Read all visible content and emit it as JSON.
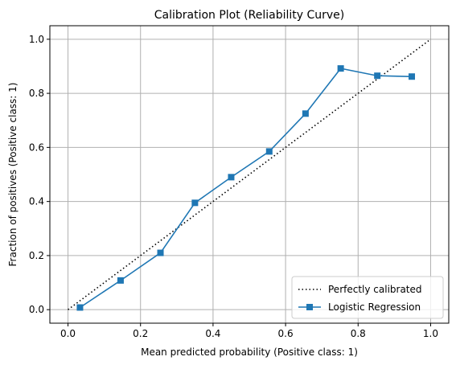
{
  "chart_data": {
    "type": "line",
    "title": "Calibration Plot (Reliability Curve)",
    "xlabel": "Mean predicted probability (Positive class: 1)",
    "ylabel": "Fraction of positives (Positive class: 1)",
    "xlim": [
      -0.05,
      1.05
    ],
    "ylim": [
      -0.05,
      1.05
    ],
    "xticks": [
      "0.0",
      "0.2",
      "0.4",
      "0.6",
      "0.8",
      "1.0"
    ],
    "yticks": [
      "0.0",
      "0.2",
      "0.4",
      "0.6",
      "0.8",
      "1.0"
    ],
    "grid": true,
    "legend_position": "bottom-right",
    "series": [
      {
        "name": "Perfectly calibrated",
        "style": "dotted",
        "color": "#000000",
        "x": [
          0.0,
          1.0
        ],
        "y": [
          0.0,
          1.0
        ]
      },
      {
        "name": "Logistic Regression",
        "style": "solid",
        "marker": "square",
        "color": "#1f77b4",
        "x": [
          0.033,
          0.145,
          0.255,
          0.35,
          0.45,
          0.555,
          0.655,
          0.752,
          0.853,
          0.948
        ],
        "y": [
          0.008,
          0.108,
          0.21,
          0.395,
          0.49,
          0.585,
          0.725,
          0.892,
          0.865,
          0.862
        ]
      }
    ]
  }
}
